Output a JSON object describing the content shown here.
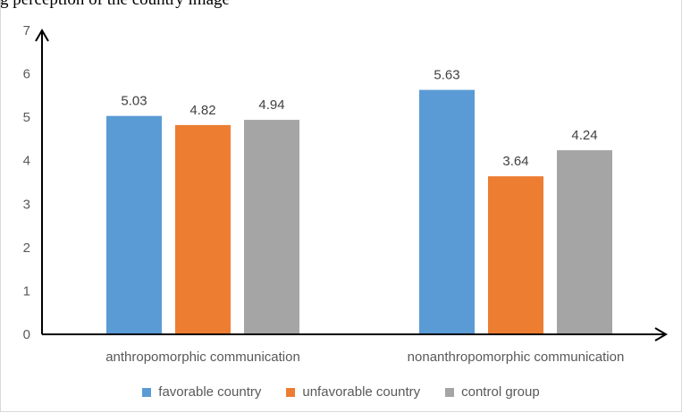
{
  "caption_fragment": "g                         perception of the country image",
  "chart_data": {
    "type": "bar",
    "categories": [
      "anthropomorphic communication",
      "nonanthropomorphic communication"
    ],
    "series": [
      {
        "name": "favorable country",
        "values": [
          5.03,
          5.63
        ],
        "color": "#5b9bd5"
      },
      {
        "name": "unfavorable country",
        "values": [
          4.82,
          3.64
        ],
        "color": "#ed7d31"
      },
      {
        "name": "control group",
        "values": [
          4.94,
          4.24
        ],
        "color": "#a5a5a5"
      }
    ],
    "yticks": [
      "0",
      "1",
      "2",
      "3",
      "4",
      "5",
      "6",
      "7"
    ],
    "ylim": [
      0,
      7
    ],
    "grid": false,
    "legend_position": "bottom",
    "data_labels": true
  }
}
